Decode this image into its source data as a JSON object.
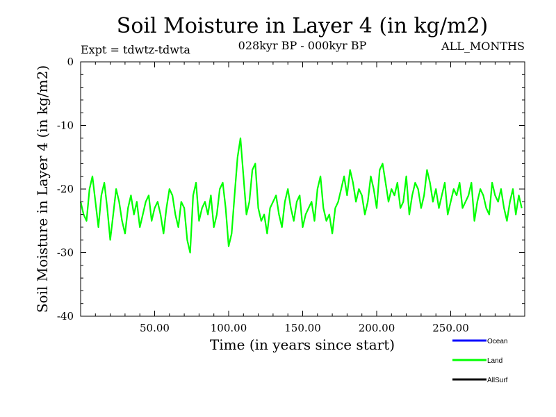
{
  "chart_data": {
    "type": "line",
    "title": "Soil Moisture in Layer 4 (in kg/m2)",
    "subtitle_left": "Expt = tdwtz-tdwta",
    "subtitle_center": "028kyr BP - 000kyr BP",
    "subtitle_right": "ALL_MONTHS",
    "xlabel": "Time (in years since start)",
    "ylabel": "Soil Moisture in Layer 4 (in kg/m2)",
    "xlim": [
      0,
      300
    ],
    "ylim": [
      -40,
      0
    ],
    "x_ticks": [
      50,
      100,
      150,
      200,
      250
    ],
    "x_tick_labels": [
      "50.00",
      "100.00",
      "150.00",
      "200.00",
      "250.00"
    ],
    "y_ticks": [
      0,
      -10,
      -20,
      -30,
      -40
    ],
    "y_tick_labels": [
      "0",
      "-10",
      "-20",
      "-30",
      "-40"
    ],
    "legend": [
      {
        "name": "Ocean",
        "color": "#0000ff"
      },
      {
        "name": "Land",
        "color": "#00ff00"
      },
      {
        "name": "AllSurf",
        "color": "#000000"
      }
    ],
    "series": [
      {
        "name": "Land",
        "color": "#00ff00",
        "x_start": 0,
        "x_step": 2,
        "values": [
          -22,
          -24,
          -25,
          -20,
          -18,
          -22,
          -26,
          -21,
          -19,
          -23,
          -28,
          -24,
          -20,
          -22,
          -25,
          -27,
          -23,
          -21,
          -24,
          -22,
          -26,
          -24,
          -22,
          -21,
          -25,
          -23,
          -22,
          -24,
          -27,
          -23,
          -20,
          -21,
          -24,
          -26,
          -22,
          -23,
          -28,
          -30,
          -21,
          -19,
          -25,
          -23,
          -22,
          -24,
          -21,
          -26,
          -24,
          -20,
          -19,
          -23,
          -29,
          -27,
          -21,
          -15,
          -12,
          -18,
          -24,
          -22,
          -17,
          -16,
          -23,
          -25,
          -24,
          -27,
          -23,
          -22,
          -21,
          -24,
          -26,
          -22,
          -20,
          -23,
          -25,
          -22,
          -21,
          -26,
          -24,
          -23,
          -22,
          -25,
          -20,
          -18,
          -23,
          -25,
          -24,
          -27,
          -23,
          -22,
          -20,
          -18,
          -21,
          -17,
          -19,
          -22,
          -20,
          -21,
          -24,
          -22,
          -18,
          -20,
          -23,
          -17,
          -16,
          -19,
          -22,
          -20,
          -21,
          -19,
          -23,
          -22,
          -18,
          -24,
          -21,
          -19,
          -20,
          -23,
          -21,
          -17,
          -19,
          -22,
          -20,
          -23,
          -21,
          -19,
          -24,
          -22,
          -20,
          -21,
          -19,
          -23,
          -22,
          -21,
          -19,
          -25,
          -22,
          -20,
          -21,
          -23,
          -24,
          -19,
          -21,
          -22,
          -20,
          -23,
          -25,
          -22,
          -20,
          -24,
          -21,
          -23
        ]
      }
    ]
  }
}
